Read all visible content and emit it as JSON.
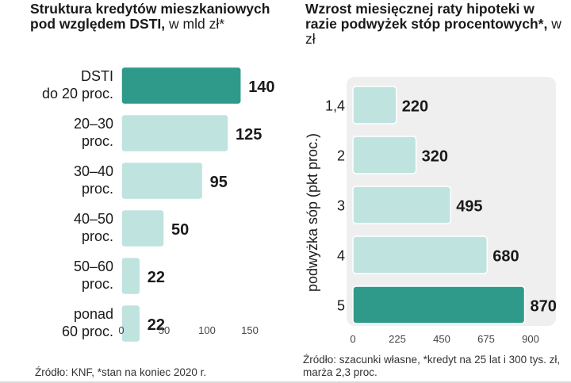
{
  "left": {
    "title_bold": "Struktura kredytów mieszkaniowych pod względem DSTI,",
    "title_unit": " w mld zł*",
    "source": "Źródło: KNF, *stan na koniec 2020 r."
  },
  "right": {
    "title_bold": "Wzrost miesięcznej raty hipoteki w razie podwyżek stóp procentowych*,",
    "title_unit": " w zł",
    "source": "Źródło: szacunki własne, *kredyt na 25 lat i 300 tys. zł, marża 2,3 proc."
  },
  "colors": {
    "highlight": "#2f9a8a",
    "bar": "#bfe3df",
    "bar_stroke": "#ffffff",
    "plot_bg": "#efefef"
  },
  "chart_data": [
    {
      "type": "bar",
      "orientation": "horizontal",
      "title": "Struktura kredytów mieszkaniowych pod względem DSTI, w mld zł*",
      "categories": [
        [
          "DSTI",
          "do 20 proc."
        ],
        [
          "20–30",
          "proc."
        ],
        [
          "30–40",
          "proc."
        ],
        [
          "40–50",
          "proc."
        ],
        [
          "50–60",
          "proc."
        ],
        [
          "ponad",
          "60 proc."
        ]
      ],
      "values": [
        140,
        125,
        95,
        50,
        22,
        22
      ],
      "value_labels": [
        "140",
        "125",
        "95",
        "50",
        "22",
        "22"
      ],
      "highlight_index": 0,
      "xlim": [
        0,
        150
      ],
      "xticks": [
        0,
        50,
        100,
        150
      ],
      "xlabel": "",
      "ylabel": ""
    },
    {
      "type": "bar",
      "orientation": "horizontal",
      "title": "Wzrost miesięcznej raty hipoteki w razie podwyżek stóp procentowych*, w zł",
      "categories": [
        "1,4",
        "2",
        "3",
        "4",
        "5"
      ],
      "values": [
        220,
        320,
        495,
        680,
        870
      ],
      "value_labels": [
        "220",
        "320",
        "495",
        "680",
        "870"
      ],
      "highlight_index": 4,
      "xlim": [
        0,
        900
      ],
      "xticks": [
        0,
        225,
        450,
        675,
        900
      ],
      "xlabel": "",
      "ylabel": "podwyżka sóp (pkt proc.)"
    }
  ]
}
